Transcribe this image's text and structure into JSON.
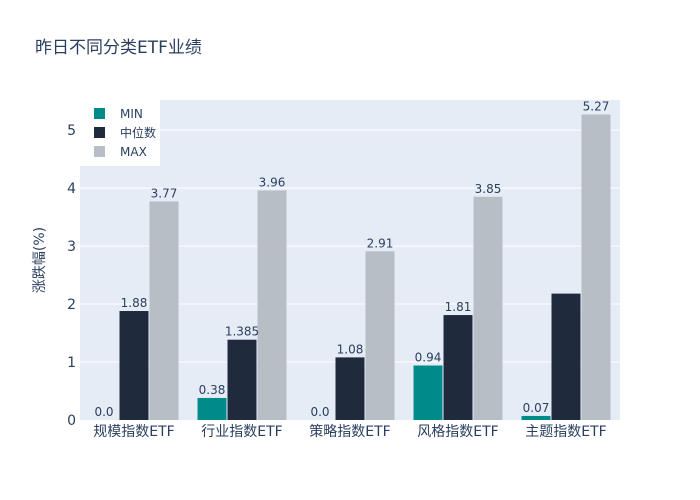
{
  "chart_data": {
    "type": "bar",
    "title": "昨日不同分类ETF业绩",
    "ylabel": "涨跌幅(%)",
    "xlabel": "",
    "categories": [
      "规模指数ETF",
      "行业指数ETF",
      "策略指数ETF",
      "风格指数ETF",
      "主题指数ETF"
    ],
    "series": [
      {
        "name": "MIN",
        "color": "#008b8b",
        "values": [
          0.0,
          0.38,
          0.0,
          0.94,
          0.07
        ],
        "labels": [
          "0.0",
          "0.38",
          "0.0",
          "0.94",
          "0.07"
        ]
      },
      {
        "name": "中位数",
        "color": "#1f2a3c",
        "values": [
          1.88,
          1.385,
          1.08,
          1.81,
          2.18
        ],
        "labels": [
          "1.88",
          "1.385",
          "1.08",
          "1.81",
          ""
        ]
      },
      {
        "name": "MAX",
        "color": "#b8bec6",
        "values": [
          3.77,
          3.96,
          2.91,
          3.85,
          5.27
        ],
        "labels": [
          "3.77",
          "3.96",
          "2.91",
          "3.85",
          "5.27"
        ]
      }
    ],
    "ylim": [
      0,
      5.52
    ],
    "yticks": [
      0,
      1,
      2,
      3,
      4,
      5
    ],
    "grid": true,
    "legend_position": "top-left",
    "colors": {
      "plot_bg": "#e5ecf6",
      "grid": "#ffffff",
      "text": "#2a3f5f"
    }
  }
}
